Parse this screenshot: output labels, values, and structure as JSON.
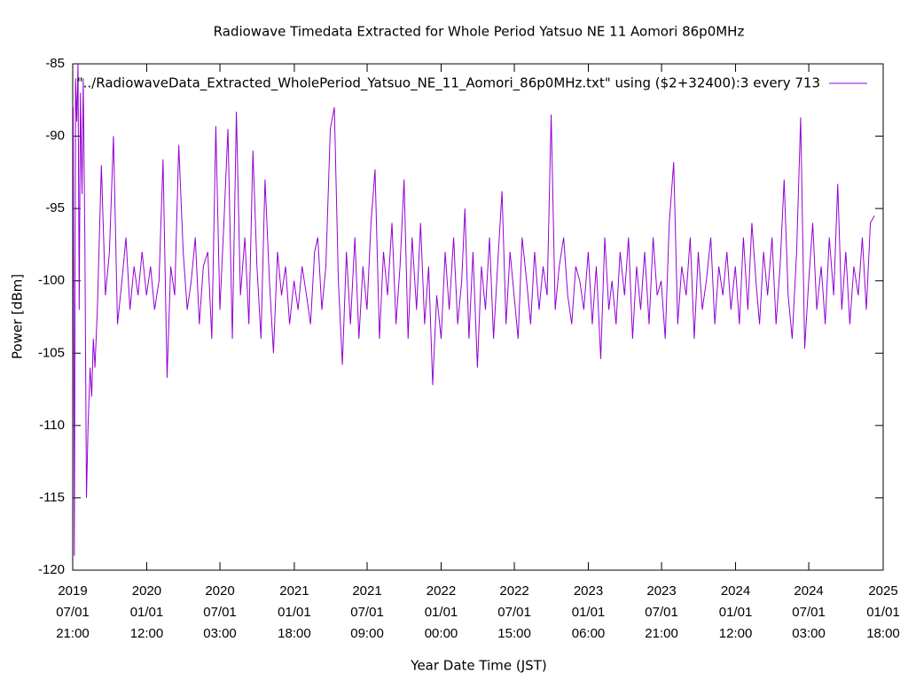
{
  "chart_data": {
    "type": "line",
    "title": "Radiowave Timedata Extracted for Whole Period Yatsuo NE 11 Aomori 86p0MHz",
    "xlabel": "Year Date Time (JST)",
    "ylabel": "Power [dBm]",
    "ylim": [
      -120,
      -85
    ],
    "yticks": [
      -120,
      -115,
      -110,
      -105,
      -100,
      -95,
      -90,
      -85
    ],
    "xlim": [
      "2019-07-01 21:00",
      "2025-01-01 18:00"
    ],
    "xticks": [
      {
        "value": "2019-07-01 21:00",
        "label": [
          "2019",
          "07/01",
          "21:00"
        ]
      },
      {
        "value": "2020-01-01 12:00",
        "label": [
          "2020",
          "01/01",
          "12:00"
        ]
      },
      {
        "value": "2020-07-01 03:00",
        "label": [
          "2020",
          "07/01",
          "03:00"
        ]
      },
      {
        "value": "2021-01-01 18:00",
        "label": [
          "2021",
          "01/01",
          "18:00"
        ]
      },
      {
        "value": "2021-07-01 09:00",
        "label": [
          "2021",
          "07/01",
          "09:00"
        ]
      },
      {
        "value": "2022-01-01 00:00",
        "label": [
          "2022",
          "01/01",
          "00:00"
        ]
      },
      {
        "value": "2022-07-01 15:00",
        "label": [
          "2022",
          "07/01",
          "15:00"
        ]
      },
      {
        "value": "2023-01-01 06:00",
        "label": [
          "2023",
          "01/01",
          "06:00"
        ]
      },
      {
        "value": "2023-07-01 21:00",
        "label": [
          "2023",
          "07/01",
          "21:00"
        ]
      },
      {
        "value": "2024-01-01 12:00",
        "label": [
          "2024",
          "01/01",
          "12:00"
        ]
      },
      {
        "value": "2024-07-01 03:00",
        "label": [
          "2024",
          "07/01",
          "03:00"
        ]
      },
      {
        "value": "2025-01-01 18:00",
        "label": [
          "2025",
          "01/01",
          "18:00"
        ]
      }
    ],
    "grid": false,
    "legend": "top-right",
    "x": [
      "2019-07-03 00:00",
      "2019-07-06 00:00",
      "2019-07-09 00:00",
      "2019-07-12 00:00",
      "2019-07-15 00:00",
      "2019-07-18 00:00",
      "2019-07-21 00:00",
      "2019-07-25 00:00",
      "2019-07-28 00:00",
      "2019-08-01 00:00",
      "2019-08-05 00:00",
      "2019-08-09 00:00",
      "2019-08-14 00:00",
      "2019-08-18 00:00",
      "2019-08-22 00:00",
      "2019-08-26 00:00",
      "2019-09-01 00:00",
      "2019-09-11 00:00",
      "2019-09-21 00:00",
      "2019-10-01 00:00",
      "2019-10-11 00:00",
      "2019-10-21 00:00",
      "2019-11-01 00:00",
      "2019-11-11 00:00",
      "2019-11-21 00:00",
      "2019-12-01 00:00",
      "2019-12-11 00:00",
      "2019-12-21 00:00",
      "2020-01-01 00:00",
      "2020-01-11 00:00",
      "2020-01-21 00:00",
      "2020-02-01 00:00",
      "2020-02-11 00:00",
      "2020-02-21 00:00",
      "2020-03-01 00:00",
      "2020-03-11 00:00",
      "2020-03-21 00:00",
      "2020-04-01 00:00",
      "2020-04-11 00:00",
      "2020-04-21 00:00",
      "2020-05-01 00:00",
      "2020-05-11 00:00",
      "2020-05-21 00:00",
      "2020-06-01 00:00",
      "2020-06-11 00:00",
      "2020-06-21 00:00",
      "2020-07-01 00:00",
      "2020-07-11 00:00",
      "2020-07-21 00:00",
      "2020-08-01 00:00",
      "2020-08-11 00:00",
      "2020-08-21 00:00",
      "2020-09-01 00:00",
      "2020-09-11 00:00",
      "2020-09-21 00:00",
      "2020-10-01 00:00",
      "2020-10-11 00:00",
      "2020-10-21 00:00",
      "2020-11-01 00:00",
      "2020-11-11 00:00",
      "2020-11-21 00:00",
      "2020-12-01 00:00",
      "2020-12-11 00:00",
      "2020-12-21 00:00",
      "2021-01-01 00:00",
      "2021-01-11 00:00",
      "2021-01-21 00:00",
      "2021-02-01 00:00",
      "2021-02-11 00:00",
      "2021-02-21 00:00",
      "2021-03-01 00:00",
      "2021-03-11 00:00",
      "2021-03-21 00:00",
      "2021-04-01 00:00",
      "2021-04-11 00:00",
      "2021-04-21 00:00",
      "2021-05-01 00:00",
      "2021-05-11 00:00",
      "2021-05-21 00:00",
      "2021-06-01 00:00",
      "2021-06-11 00:00",
      "2021-06-21 00:00",
      "2021-07-01 00:00",
      "2021-07-11 00:00",
      "2021-07-21 00:00",
      "2021-08-01 00:00",
      "2021-08-11 00:00",
      "2021-08-21 00:00",
      "2021-09-01 00:00",
      "2021-09-11 00:00",
      "2021-09-21 00:00",
      "2021-10-01 00:00",
      "2021-10-11 00:00",
      "2021-10-21 00:00",
      "2021-11-01 00:00",
      "2021-11-11 00:00",
      "2021-11-21 00:00",
      "2021-12-01 00:00",
      "2021-12-11 00:00",
      "2021-12-21 00:00",
      "2022-01-01 00:00",
      "2022-01-11 00:00",
      "2022-01-21 00:00",
      "2022-02-01 00:00",
      "2022-02-11 00:00",
      "2022-02-21 00:00",
      "2022-03-01 00:00",
      "2022-03-11 00:00",
      "2022-03-21 00:00",
      "2022-04-01 00:00",
      "2022-04-11 00:00",
      "2022-04-21 00:00",
      "2022-05-01 00:00",
      "2022-05-11 00:00",
      "2022-05-21 00:00",
      "2022-06-01 00:00",
      "2022-06-11 00:00",
      "2022-06-21 00:00",
      "2022-07-01 00:00",
      "2022-07-11 00:00",
      "2022-07-21 00:00",
      "2022-08-01 00:00",
      "2022-08-11 00:00",
      "2022-08-21 00:00",
      "2022-09-01 00:00",
      "2022-09-11 00:00",
      "2022-09-21 00:00",
      "2022-10-01 00:00",
      "2022-10-11 00:00",
      "2022-10-21 00:00",
      "2022-11-01 00:00",
      "2022-11-11 00:00",
      "2022-11-21 00:00",
      "2022-12-01 00:00",
      "2022-12-11 00:00",
      "2022-12-21 00:00",
      "2023-01-01 00:00",
      "2023-01-11 00:00",
      "2023-01-21 00:00",
      "2023-02-01 00:00",
      "2023-02-11 00:00",
      "2023-02-21 00:00",
      "2023-03-01 00:00",
      "2023-03-11 00:00",
      "2023-03-21 00:00",
      "2023-04-01 00:00",
      "2023-04-11 00:00",
      "2023-04-21 00:00",
      "2023-05-01 00:00",
      "2023-05-11 00:00",
      "2023-05-21 00:00",
      "2023-06-01 00:00",
      "2023-06-11 00:00",
      "2023-06-21 00:00",
      "2023-07-01 00:00",
      "2023-07-11 00:00",
      "2023-07-21 00:00",
      "2023-08-01 00:00",
      "2023-08-11 00:00",
      "2023-08-21 00:00",
      "2023-09-01 00:00",
      "2023-09-11 00:00",
      "2023-09-21 00:00",
      "2023-10-01 00:00",
      "2023-10-11 00:00",
      "2023-10-21 00:00",
      "2023-11-01 00:00",
      "2023-11-11 00:00",
      "2023-11-21 00:00",
      "2023-12-01 00:00",
      "2023-12-11 00:00",
      "2023-12-21 00:00",
      "2024-01-01 00:00",
      "2024-01-11 00:00",
      "2024-01-21 00:00",
      "2024-02-01 00:00",
      "2024-02-11 00:00",
      "2024-02-21 00:00",
      "2024-03-01 00:00",
      "2024-03-11 00:00",
      "2024-03-21 00:00",
      "2024-04-01 00:00",
      "2024-04-11 00:00",
      "2024-04-21 00:00",
      "2024-05-01 00:00",
      "2024-05-11 00:00",
      "2024-05-21 00:00",
      "2024-06-01 00:00",
      "2024-06-11 00:00",
      "2024-06-21 00:00",
      "2024-07-01 00:00",
      "2024-07-11 00:00",
      "2024-07-21 00:00",
      "2024-08-01 00:00",
      "2024-08-11 00:00",
      "2024-08-21 00:00",
      "2024-09-01 00:00",
      "2024-09-11 00:00",
      "2024-09-21 00:00",
      "2024-10-01 00:00",
      "2024-10-11 00:00",
      "2024-10-21 00:00",
      "2024-11-01 00:00",
      "2024-11-11 00:00",
      "2024-11-21 00:00",
      "2024-12-01 00:00",
      "2024-12-11 00:00"
    ],
    "series": [
      {
        "name": "\"../RadiowaveData_Extracted_WholePeriod_Yatsuo_NE_11_Aomori_86p0MHz.txt\" using ($2+32400):3 every 713",
        "color": "#9400d3",
        "values": [
          -88,
          -119,
          -86,
          -89,
          -85,
          -102,
          -87,
          -94,
          -86,
          -97,
          -115,
          -110,
          -106,
          -108,
          -104,
          -106,
          -102,
          -92,
          -101,
          -98,
          -90,
          -103,
          -100,
          -97,
          -102,
          -99,
          -101,
          -98,
          -101,
          -99,
          -102,
          -100,
          -91.6,
          -106.7,
          -99,
          -101,
          -90.6,
          -98,
          -102,
          -100,
          -97,
          -103,
          -99,
          -98,
          -104,
          -89.3,
          -102,
          -96,
          -89.5,
          -104,
          -88.3,
          -101,
          -97,
          -103,
          -91,
          -99,
          -104,
          -93,
          -100,
          -105,
          -98,
          -101,
          -99,
          -103,
          -100,
          -102,
          -99,
          -101,
          -103,
          -98,
          -97,
          -102,
          -99,
          -89.5,
          -88,
          -100,
          -105.8,
          -98,
          -103,
          -97,
          -104,
          -99,
          -102,
          -96,
          -92.3,
          -104,
          -98,
          -101,
          -96,
          -103,
          -99,
          -93,
          -104,
          -97,
          -102,
          -96,
          -103,
          -99,
          -107.2,
          -101,
          -104,
          -98,
          -102,
          -97,
          -103,
          -100,
          -95,
          -104,
          -98,
          -106,
          -99,
          -102,
          -97,
          -104,
          -99,
          -93.8,
          -103,
          -98,
          -101,
          -104,
          -97,
          -100,
          -103,
          -98,
          -102,
          -99,
          -101,
          -88.5,
          -102,
          -99,
          -97,
          -101,
          -103,
          -99,
          -100,
          -102,
          -98,
          -103,
          -99,
          -105.4,
          -97,
          -102,
          -100,
          -103,
          -98,
          -101,
          -97,
          -104,
          -99,
          -102,
          -98,
          -103,
          -97,
          -101,
          -100,
          -104,
          -96,
          -91.8,
          -103,
          -99,
          -101,
          -97,
          -104,
          -98,
          -102,
          -100,
          -97,
          -103,
          -99,
          -101,
          -98,
          -102,
          -99,
          -103,
          -97,
          -102,
          -96,
          -100,
          -103,
          -98,
          -101,
          -97,
          -103,
          -99,
          -93,
          -101,
          -104,
          -98,
          -88.7,
          -104.7,
          -100,
          -96,
          -102,
          -99,
          -103,
          -97,
          -101,
          -93.3,
          -102,
          -98,
          -103,
          -99,
          -101,
          -97,
          -102,
          -96,
          -95.5
        ]
      }
    ]
  }
}
